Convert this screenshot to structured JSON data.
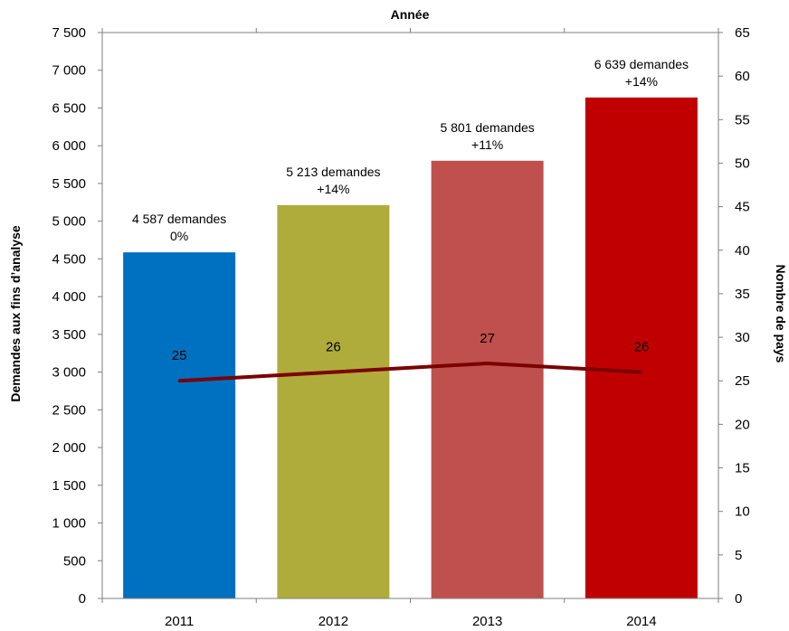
{
  "chart_data": {
    "type": "bar",
    "title": "Année",
    "ylabel_left": "Demandes aux fins d’analyse",
    "ylabel_right": "Nombre de pays",
    "categories": [
      "2011",
      "2012",
      "2013",
      "2014"
    ],
    "ylim_left": [
      0,
      7500
    ],
    "ylim_right": [
      0,
      65
    ],
    "left_ticks": [
      {
        "value": 0,
        "label": "0"
      },
      {
        "value": 500,
        "label": "500"
      },
      {
        "value": 1000,
        "label": "1 000"
      },
      {
        "value": 1500,
        "label": "1 500"
      },
      {
        "value": 2000,
        "label": "2 000"
      },
      {
        "value": 2500,
        "label": "2 500"
      },
      {
        "value": 3000,
        "label": "3 000"
      },
      {
        "value": 3500,
        "label": "3 500"
      },
      {
        "value": 4000,
        "label": "4 000"
      },
      {
        "value": 4500,
        "label": "4 500"
      },
      {
        "value": 5000,
        "label": "5 000"
      },
      {
        "value": 5500,
        "label": "5 500"
      },
      {
        "value": 6000,
        "label": "6 000"
      },
      {
        "value": 6500,
        "label": "6 500"
      },
      {
        "value": 7000,
        "label": "7 000"
      },
      {
        "value": 7500,
        "label": "7 500"
      }
    ],
    "right_ticks": [
      {
        "value": 0,
        "label": "0"
      },
      {
        "value": 5,
        "label": "5"
      },
      {
        "value": 10,
        "label": "10"
      },
      {
        "value": 15,
        "label": "15"
      },
      {
        "value": 20,
        "label": "20"
      },
      {
        "value": 25,
        "label": "25"
      },
      {
        "value": 30,
        "label": "30"
      },
      {
        "value": 35,
        "label": "35"
      },
      {
        "value": 40,
        "label": "40"
      },
      {
        "value": 45,
        "label": "45"
      },
      {
        "value": 50,
        "label": "50"
      },
      {
        "value": 55,
        "label": "55"
      },
      {
        "value": 60,
        "label": "60"
      },
      {
        "value": 65,
        "label": "65"
      }
    ],
    "bars": [
      {
        "category": "2011",
        "value": 4587,
        "color": "#0070C0",
        "label_line1": "4 587 demandes",
        "label_line2": "0%"
      },
      {
        "category": "2012",
        "value": 5213,
        "color": "#B0AC3C",
        "label_line1": "5 213 demandes",
        "label_line2": "+14%"
      },
      {
        "category": "2013",
        "value": 5801,
        "color": "#C0504D",
        "label_line1": "5 801 demandes",
        "label_line2": "+11%"
      },
      {
        "category": "2014",
        "value": 6639,
        "color": "#C00000",
        "label_line1": "6 639 demandes",
        "label_line2": "+14%"
      }
    ],
    "line": {
      "color": "#7B0000",
      "axis": "right",
      "values": [
        25,
        26,
        27,
        26
      ],
      "labels": [
        "25",
        "26",
        "27",
        "26"
      ]
    },
    "grid": false
  }
}
